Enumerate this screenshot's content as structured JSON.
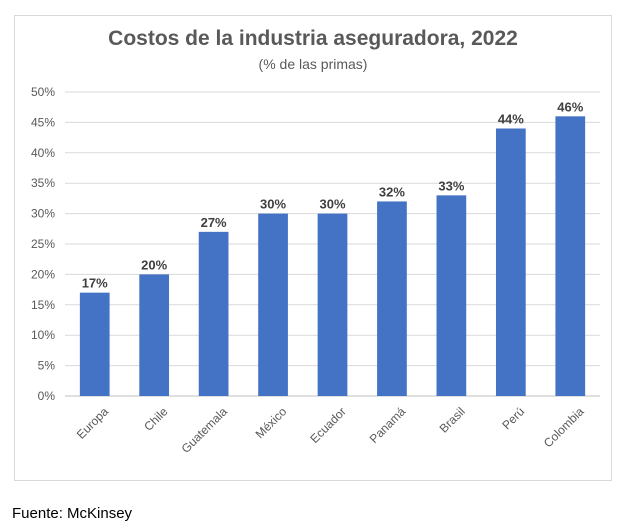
{
  "chart_data": {
    "type": "bar",
    "title": "Costos de la industria aseguradora, 2022",
    "subtitle": "(% de las primas)",
    "categories": [
      "Europa",
      "Chile",
      "Guatemala",
      "México",
      "Ecuador",
      "Panamá",
      "Brasil",
      "Perú",
      "Colombia"
    ],
    "values": [
      17,
      20,
      27,
      30,
      30,
      32,
      33,
      44,
      46
    ],
    "value_labels": [
      "17%",
      "20%",
      "27%",
      "30%",
      "30%",
      "32%",
      "33%",
      "44%",
      "46%"
    ],
    "yticks": [
      "0%",
      "5%",
      "10%",
      "15%",
      "20%",
      "25%",
      "30%",
      "35%",
      "40%",
      "45%",
      "50%"
    ],
    "ylim": [
      0,
      50
    ],
    "grid": true,
    "bar_color": "#4472C4"
  },
  "source": "Fuente: McKinsey"
}
